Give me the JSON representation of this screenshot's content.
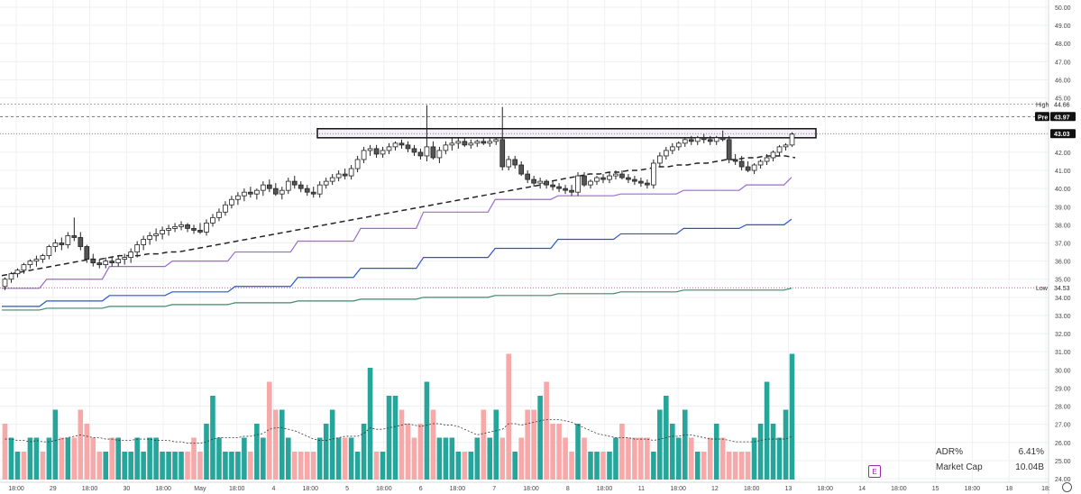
{
  "chart_data": {
    "type": "candlestick",
    "y_axis": {
      "ylim": [
        24.0,
        50.0
      ],
      "ticks": [
        "50.00",
        "49.00",
        "48.00",
        "47.00",
        "46.00",
        "45.00",
        "44.00",
        "43.00",
        "42.00",
        "41.00",
        "40.00",
        "39.00",
        "38.00",
        "37.00",
        "36.00",
        "35.00",
        "34.00",
        "33.00",
        "32.00",
        "31.00",
        "30.00",
        "29.00",
        "28.00",
        "27.00",
        "26.00",
        "25.00",
        "24.00"
      ]
    },
    "x_axis": {
      "ticks": [
        "18:00",
        "29",
        "18:00",
        "30",
        "18:00",
        "May",
        "18:00",
        "4",
        "18:00",
        "5",
        "18:00",
        "6",
        "18:00",
        "7",
        "18:00",
        "8",
        "18:00",
        "11",
        "18:00",
        "12",
        "18:00",
        "13",
        "18:00",
        "14",
        "18:00",
        "15",
        "18:00",
        "18",
        "18:"
      ]
    },
    "price_labels": {
      "high": {
        "label": "High",
        "value": "44.66"
      },
      "pre": {
        "label": "Pre",
        "value": "43.97"
      },
      "last": {
        "value": "43.03"
      },
      "low": {
        "label": "Low",
        "value": "34.53"
      }
    },
    "resistance_box": {
      "top": 43.3,
      "bottom": 42.8
    },
    "candles": [
      [
        34.6,
        35.1,
        34.4,
        35.0
      ],
      [
        35.0,
        35.4,
        34.8,
        35.3
      ],
      [
        35.3,
        35.6,
        35.1,
        35.5
      ],
      [
        35.5,
        35.9,
        35.3,
        35.8
      ],
      [
        35.8,
        36.1,
        35.6,
        36.0
      ],
      [
        36.0,
        36.3,
        35.7,
        36.1
      ],
      [
        36.1,
        36.4,
        35.9,
        36.3
      ],
      [
        36.3,
        36.9,
        36.1,
        36.8
      ],
      [
        36.8,
        37.2,
        36.5,
        37.0
      ],
      [
        37.0,
        37.3,
        36.6,
        36.9
      ],
      [
        36.9,
        37.6,
        36.7,
        37.4
      ],
      [
        37.4,
        38.4,
        37.1,
        37.3
      ],
      [
        37.3,
        37.6,
        36.6,
        36.8
      ],
      [
        36.8,
        36.9,
        35.9,
        36.1
      ],
      [
        36.1,
        36.4,
        35.7,
        35.9
      ],
      [
        35.9,
        36.1,
        35.6,
        35.8
      ],
      [
        35.8,
        36.2,
        35.6,
        36.0
      ],
      [
        36.0,
        36.2,
        35.7,
        35.9
      ],
      [
        35.9,
        36.3,
        35.7,
        36.1
      ],
      [
        36.1,
        36.4,
        35.8,
        36.2
      ],
      [
        36.2,
        36.7,
        35.9,
        36.5
      ],
      [
        36.5,
        37.1,
        36.2,
        36.9
      ],
      [
        36.9,
        37.4,
        36.6,
        37.2
      ],
      [
        37.2,
        37.6,
        36.9,
        37.4
      ],
      [
        37.4,
        37.8,
        37.1,
        37.5
      ],
      [
        37.5,
        37.9,
        37.2,
        37.7
      ],
      [
        37.7,
        38.0,
        37.4,
        37.8
      ],
      [
        37.8,
        38.1,
        37.6,
        37.9
      ],
      [
        37.9,
        38.2,
        37.7,
        38.0
      ],
      [
        38.0,
        38.1,
        37.6,
        37.8
      ],
      [
        37.8,
        38.0,
        37.5,
        37.7
      ],
      [
        37.7,
        38.1,
        37.5,
        37.6
      ],
      [
        37.6,
        38.3,
        37.4,
        38.1
      ],
      [
        38.1,
        38.6,
        37.9,
        38.4
      ],
      [
        38.4,
        38.9,
        38.2,
        38.7
      ],
      [
        38.7,
        39.3,
        38.5,
        39.1
      ],
      [
        39.1,
        39.6,
        38.9,
        39.4
      ],
      [
        39.4,
        39.8,
        39.1,
        39.6
      ],
      [
        39.6,
        40.0,
        39.3,
        39.8
      ],
      [
        39.8,
        40.1,
        39.5,
        39.7
      ],
      [
        39.7,
        40.0,
        39.4,
        39.9
      ],
      [
        39.9,
        40.4,
        39.6,
        40.2
      ],
      [
        40.2,
        40.5,
        39.8,
        40.0
      ],
      [
        40.0,
        40.3,
        39.6,
        39.7
      ],
      [
        39.7,
        40.1,
        39.4,
        39.9
      ],
      [
        39.9,
        40.6,
        39.7,
        40.4
      ],
      [
        40.4,
        40.7,
        40.0,
        40.2
      ],
      [
        40.2,
        40.4,
        39.8,
        40.0
      ],
      [
        40.0,
        40.2,
        39.6,
        39.8
      ],
      [
        39.8,
        40.1,
        39.5,
        39.7
      ],
      [
        39.7,
        40.4,
        39.5,
        40.2
      ],
      [
        40.2,
        40.6,
        40.0,
        40.4
      ],
      [
        40.4,
        40.8,
        40.2,
        40.6
      ],
      [
        40.6,
        41.0,
        40.4,
        40.8
      ],
      [
        40.8,
        41.1,
        40.5,
        40.7
      ],
      [
        40.7,
        41.3,
        40.5,
        41.1
      ],
      [
        41.1,
        41.8,
        40.9,
        41.6
      ],
      [
        41.6,
        42.3,
        41.4,
        42.1
      ],
      [
        42.1,
        42.4,
        41.8,
        42.2
      ],
      [
        42.2,
        42.4,
        41.7,
        41.9
      ],
      [
        41.9,
        42.3,
        41.7,
        42.1
      ],
      [
        42.1,
        42.5,
        41.9,
        42.3
      ],
      [
        42.3,
        42.6,
        42.1,
        42.5
      ],
      [
        42.5,
        42.7,
        42.2,
        42.4
      ],
      [
        42.4,
        42.6,
        42.0,
        42.2
      ],
      [
        42.2,
        42.4,
        41.8,
        42.0
      ],
      [
        42.0,
        42.2,
        41.6,
        41.8
      ],
      [
        41.8,
        44.6,
        41.5,
        42.3
      ],
      [
        42.3,
        42.6,
        41.6,
        41.7
      ],
      [
        41.7,
        42.3,
        41.4,
        42.1
      ],
      [
        42.1,
        42.6,
        41.9,
        42.4
      ],
      [
        42.4,
        42.8,
        42.1,
        42.5
      ],
      [
        42.5,
        42.8,
        42.2,
        42.6
      ],
      [
        42.6,
        42.8,
        42.3,
        42.4
      ],
      [
        42.4,
        42.7,
        42.2,
        42.5
      ],
      [
        42.5,
        42.7,
        42.3,
        42.6
      ],
      [
        42.6,
        42.8,
        42.4,
        42.5
      ],
      [
        42.5,
        42.8,
        42.3,
        42.6
      ],
      [
        42.6,
        42.8,
        42.4,
        42.7
      ],
      [
        42.7,
        44.5,
        41.0,
        41.2
      ],
      [
        41.2,
        41.8,
        41.0,
        41.6
      ],
      [
        41.6,
        41.8,
        41.1,
        41.3
      ],
      [
        41.3,
        41.5,
        40.7,
        40.8
      ],
      [
        40.8,
        41.0,
        40.3,
        40.5
      ],
      [
        40.5,
        40.7,
        40.1,
        40.3
      ],
      [
        40.3,
        40.6,
        40.0,
        40.4
      ],
      [
        40.4,
        40.5,
        40.0,
        40.2
      ],
      [
        40.2,
        40.4,
        39.9,
        40.1
      ],
      [
        40.1,
        40.3,
        39.8,
        40.0
      ],
      [
        40.0,
        40.2,
        39.7,
        39.9
      ],
      [
        39.9,
        40.2,
        39.6,
        39.8
      ],
      [
        39.8,
        40.9,
        39.6,
        40.7
      ],
      [
        40.7,
        40.9,
        40.1,
        40.2
      ],
      [
        40.2,
        40.5,
        40.0,
        40.4
      ],
      [
        40.4,
        40.7,
        40.2,
        40.6
      ],
      [
        40.6,
        40.8,
        40.3,
        40.5
      ],
      [
        40.5,
        40.9,
        40.3,
        40.7
      ],
      [
        40.7,
        41.0,
        40.5,
        40.8
      ],
      [
        40.8,
        41.0,
        40.5,
        40.6
      ],
      [
        40.6,
        40.8,
        40.3,
        40.5
      ],
      [
        40.5,
        40.7,
        40.2,
        40.4
      ],
      [
        40.4,
        40.6,
        40.1,
        40.3
      ],
      [
        40.3,
        40.5,
        40.0,
        40.2
      ],
      [
        40.2,
        41.6,
        40.0,
        41.4
      ],
      [
        41.4,
        42.0,
        41.2,
        41.8
      ],
      [
        41.8,
        42.3,
        41.6,
        42.1
      ],
      [
        42.1,
        42.5,
        41.9,
        42.3
      ],
      [
        42.3,
        42.6,
        42.1,
        42.5
      ],
      [
        42.5,
        42.8,
        42.3,
        42.7
      ],
      [
        42.7,
        42.9,
        42.4,
        42.6
      ],
      [
        42.6,
        42.9,
        42.4,
        42.8
      ],
      [
        42.8,
        43.0,
        42.5,
        42.7
      ],
      [
        42.7,
        42.9,
        42.4,
        42.6
      ],
      [
        42.6,
        42.9,
        42.4,
        42.8
      ],
      [
        42.8,
        43.2,
        42.6,
        42.7
      ],
      [
        42.7,
        42.9,
        41.4,
        41.6
      ],
      [
        41.6,
        41.9,
        41.3,
        41.5
      ],
      [
        41.5,
        41.8,
        41.0,
        41.2
      ],
      [
        41.2,
        41.5,
        40.9,
        41.0
      ],
      [
        41.0,
        41.4,
        40.8,
        41.3
      ],
      [
        41.3,
        41.6,
        41.1,
        41.5
      ],
      [
        41.5,
        41.9,
        41.3,
        41.7
      ],
      [
        41.7,
        42.1,
        41.5,
        42.0
      ],
      [
        42.0,
        42.4,
        41.8,
        42.3
      ],
      [
        42.3,
        42.5,
        42.1,
        42.4
      ],
      [
        42.4,
        43.1,
        42.3,
        43.0
      ]
    ],
    "volumes": [
      4,
      3,
      2,
      2,
      3,
      3,
      2,
      3,
      5,
      3,
      3,
      3,
      5,
      4,
      3,
      2,
      2,
      3,
      3,
      2,
      2,
      3,
      2,
      3,
      3,
      2,
      2,
      2,
      2,
      2,
      3,
      2,
      4,
      6,
      3,
      2,
      2,
      2,
      3,
      2,
      4,
      3,
      7,
      5,
      5,
      3,
      2,
      2,
      2,
      2,
      3,
      4,
      5,
      3,
      3,
      3,
      2,
      4,
      8,
      2,
      2,
      6,
      6,
      5,
      4,
      3,
      4,
      7,
      5,
      3,
      3,
      3,
      2,
      2,
      2,
      3,
      5,
      3,
      5,
      3,
      9,
      2,
      3,
      5,
      5,
      6,
      7,
      4,
      4,
      3,
      2,
      4,
      3,
      2,
      2,
      2,
      2,
      3,
      4,
      3,
      3,
      3,
      3,
      2,
      5,
      6,
      4,
      3,
      5,
      3,
      2,
      2,
      3,
      4,
      3,
      2,
      2,
      2,
      2,
      3,
      4,
      7,
      4,
      3,
      5,
      9
    ],
    "volume_up": [
      0,
      1,
      1,
      0,
      1,
      1,
      0,
      1,
      1,
      0,
      1,
      0,
      0,
      0,
      0,
      0,
      1,
      0,
      1,
      1,
      1,
      1,
      1,
      1,
      1,
      1,
      1,
      1,
      1,
      0,
      0,
      0,
      1,
      1,
      1,
      1,
      1,
      1,
      1,
      0,
      1,
      1,
      0,
      0,
      1,
      1,
      0,
      0,
      0,
      0,
      1,
      1,
      1,
      1,
      0,
      1,
      1,
      1,
      1,
      0,
      1,
      1,
      1,
      0,
      0,
      0,
      0,
      1,
      0,
      1,
      1,
      1,
      1,
      0,
      1,
      1,
      0,
      1,
      1,
      0,
      0,
      1,
      0,
      0,
      0,
      1,
      0,
      0,
      0,
      0,
      0,
      1,
      0,
      1,
      1,
      0,
      1,
      1,
      0,
      0,
      0,
      0,
      0,
      1,
      1,
      1,
      1,
      1,
      1,
      0,
      1,
      0,
      0,
      1,
      0,
      0,
      0,
      0,
      0,
      1,
      1,
      1,
      1,
      1,
      1,
      1
    ],
    "volume_ma": [
      2.9,
      2.9,
      2.8,
      2.8,
      2.7,
      2.8,
      2.7,
      2.7,
      2.8,
      2.9,
      3.0,
      3.1,
      3.2,
      3.1,
      3.0,
      3.0,
      2.9,
      2.9,
      2.8,
      2.8,
      2.8,
      2.9,
      2.9,
      2.9,
      2.8,
      2.8,
      2.8,
      2.7,
      2.7,
      2.6,
      2.6,
      2.6,
      2.7,
      2.9,
      3.0,
      3.0,
      3.0,
      3.0,
      3.1,
      3.1,
      3.2,
      3.3,
      3.6,
      3.7,
      3.7,
      3.6,
      3.5,
      3.3,
      3.1,
      2.9,
      2.8,
      2.8,
      2.9,
      3.0,
      3.1,
      3.1,
      3.1,
      3.3,
      3.7,
      3.6,
      3.6,
      3.7,
      3.8,
      3.9,
      4.0,
      3.9,
      3.8,
      3.9,
      4.0,
      4.0,
      3.9,
      3.9,
      3.8,
      3.6,
      3.4,
      3.2,
      3.3,
      3.4,
      3.5,
      3.6,
      4.0,
      4.0,
      3.9,
      4.0,
      4.1,
      4.2,
      4.3,
      4.3,
      4.3,
      4.2,
      4.1,
      3.9,
      3.7,
      3.5,
      3.3,
      3.2,
      3.1,
      3.0,
      3.0,
      3.0,
      2.9,
      2.9,
      2.9,
      2.8,
      2.9,
      3.0,
      3.1,
      3.1,
      3.2,
      3.2,
      3.1,
      3.0,
      2.9,
      2.9,
      2.9,
      2.8,
      2.7,
      2.7,
      2.7,
      2.7,
      2.8,
      2.9,
      2.9,
      2.9,
      2.9,
      3.1
    ],
    "series_lines": {
      "ema_dashed": [
        35.2,
        35.3,
        35.4,
        35.5,
        35.6,
        35.7,
        35.8,
        35.9,
        36.0,
        36.1,
        36.1,
        36.2,
        36.3,
        36.3,
        36.3,
        36.4,
        36.4,
        36.5,
        36.5,
        36.6,
        36.7,
        36.8,
        36.9,
        37.0,
        37.1,
        37.2,
        37.3,
        37.4,
        37.5,
        37.6,
        37.7,
        37.8,
        37.9,
        38.0,
        38.1,
        38.2,
        38.3,
        38.4,
        38.5,
        38.6,
        38.7,
        38.8,
        38.9,
        39.0,
        39.1,
        39.2,
        39.3,
        39.4,
        39.5,
        39.6,
        39.7,
        39.8,
        39.9,
        40.0,
        40.1,
        40.2,
        40.4,
        40.5,
        40.6,
        40.7,
        40.8,
        40.8,
        40.9,
        40.9,
        41.0,
        41.0,
        41.1,
        41.2,
        41.2,
        41.3,
        41.3,
        41.4,
        41.4,
        41.5,
        41.6,
        41.6,
        41.7,
        41.7,
        41.8,
        41.8,
        41.8,
        41.7
      ],
      "purple_steps": {
        "x_breaks": [
          0.0,
          0.05,
          0.12,
          0.19,
          0.26,
          0.33,
          0.4,
          0.47,
          0.55,
          0.62,
          0.69,
          0.76,
          0.83,
          0.88
        ],
        "levels": [
          34.5,
          35.0,
          35.7,
          36.0,
          36.5,
          37.1,
          37.8,
          38.7,
          39.4,
          39.6,
          39.7,
          39.9,
          40.2,
          40.6
        ]
      },
      "blue_steps": {
        "x_breaks": [
          0.0,
          0.05,
          0.12,
          0.19,
          0.26,
          0.33,
          0.4,
          0.47,
          0.55,
          0.62,
          0.69,
          0.76,
          0.83,
          0.88
        ],
        "levels": [
          33.5,
          33.8,
          34.1,
          34.3,
          34.6,
          35.1,
          35.6,
          36.2,
          36.7,
          37.2,
          37.5,
          37.8,
          38.0,
          38.3
        ]
      },
      "green_steps": {
        "x_breaks": [
          0.0,
          0.05,
          0.12,
          0.19,
          0.26,
          0.33,
          0.4,
          0.47,
          0.55,
          0.62,
          0.69,
          0.76,
          0.83,
          0.88
        ],
        "levels": [
          33.3,
          33.4,
          33.5,
          33.6,
          33.7,
          33.8,
          33.9,
          34.0,
          34.1,
          34.2,
          34.3,
          34.4,
          34.4,
          34.5
        ]
      }
    },
    "colors": {
      "up_candle": "#ffffff",
      "down_candle": "#555555",
      "candle_border": "#222222",
      "volume_up": "#26a69a",
      "volume_down": "#f7a8a8",
      "ema": "#222222",
      "purple": "#9b6ad6",
      "blue": "#2855d8",
      "green": "#3c8a6a",
      "grid": "#eef0f3"
    }
  },
  "stats": {
    "adr_label": "ADR%",
    "adr_value": "6.41%",
    "mcap_label": "Market Cap",
    "mcap_value": "10.04B"
  },
  "earnings_badge": "E"
}
